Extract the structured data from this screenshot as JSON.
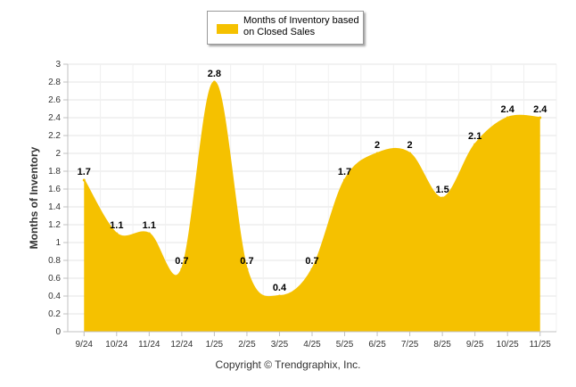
{
  "chart_data": {
    "type": "area",
    "categories": [
      "9/24",
      "10/24",
      "11/24",
      "12/24",
      "1/25",
      "2/25",
      "3/25",
      "4/25",
      "5/25",
      "6/25",
      "7/25",
      "8/25",
      "9/25",
      "10/25",
      "11/25"
    ],
    "series": [
      {
        "name": "Months of Inventory based on Closed Sales",
        "values": [
          1.7,
          1.1,
          1.1,
          0.7,
          2.8,
          0.7,
          0.4,
          0.7,
          1.7,
          2,
          2,
          1.5,
          2.1,
          2.4,
          2.4
        ]
      }
    ],
    "value_labels": [
      "1.7",
      "1.1",
      "1.1",
      "0.7",
      "2.8",
      "0.7",
      "0.4",
      "0.7",
      "1.7",
      "2",
      "2",
      "1.5",
      "2.1",
      "2.4",
      "2.4"
    ],
    "title": "",
    "xlabel": "",
    "ylabel": "Months of Inventory",
    "ylim": [
      0,
      3
    ],
    "yticks": [
      "0",
      "0.2",
      "0.4",
      "0.6",
      "0.8",
      "1",
      "1.2",
      "1.4",
      "1.6",
      "1.8",
      "2",
      "2.2",
      "2.4",
      "2.6",
      "2.8",
      "3"
    ],
    "grid": true,
    "legend_position": "top-center",
    "series_color": "#f5c100"
  },
  "legend": {
    "label": "Months of Inventory based on Closed Sales"
  },
  "footer": {
    "copyright": "Copyright © Trendgraphix, Inc."
  }
}
